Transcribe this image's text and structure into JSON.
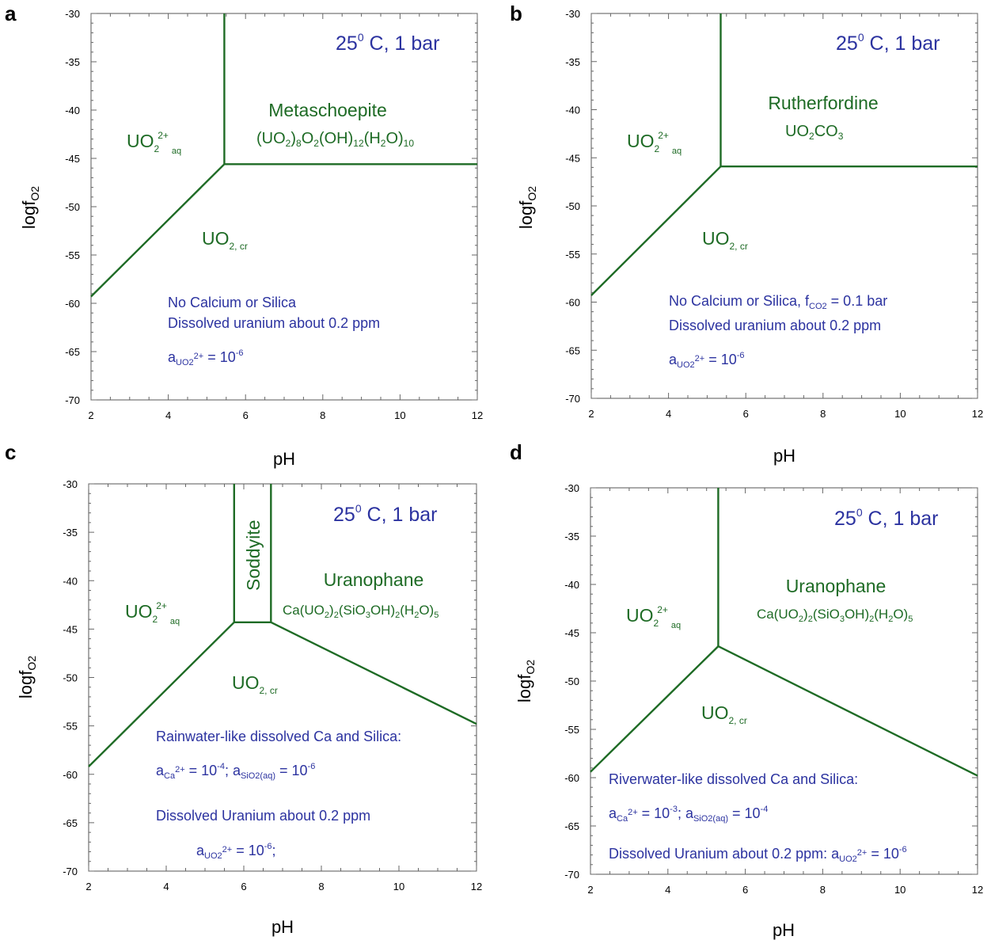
{
  "panel_labels": [
    "a",
    "b",
    "c",
    "d"
  ],
  "common": {
    "temp_text": "25",
    "temp_sup": "0",
    "temp_rest": " C, 1 bar",
    "x_label": "pH",
    "y_label": "logf",
    "y_label_sub": "O2",
    "x_ticks": [
      "2",
      "4",
      "6",
      "8",
      "10",
      "12"
    ],
    "y_ticks": [
      "-30",
      "-35",
      "-40",
      "-45",
      "-50",
      "-55",
      "-60",
      "-65",
      "-70"
    ],
    "uo2aq_main": "UO",
    "uo2aq_sub": "2",
    "uo2aq_sup": "2+",
    "uo2aq_tail": "aq",
    "uo2cr_main": "UO",
    "uo2cr_sub": "2, cr"
  },
  "colors": {
    "boundary": "#1e6b25",
    "mineral_text": "#1e6b25",
    "annotation_text": "#2c33a0",
    "frame": "#555555"
  },
  "panels": {
    "a": {
      "mineral": "Metaschoepite",
      "formula": "(UO2)8O2(OH)12(H2O)10",
      "notes": [
        "No Calcium or Silica",
        "Dissolved uranium about 0.2 ppm"
      ],
      "activity": {
        "a": "a",
        "sub": "UO2",
        "sup": "2+",
        "eq": " = 10",
        "exp": "-6"
      }
    },
    "b": {
      "mineral": "Rutherfordine",
      "formula": "UO2CO3",
      "notes_line1_prefix": "No Calcium or Silica, f",
      "notes_line1_sub": "CO2",
      "notes_line1_suffix": " = 0.1 bar",
      "notes": [
        "Dissolved uranium about 0.2 ppm"
      ],
      "activity": {
        "a": "a",
        "sub": "UO2",
        "sup": "2+",
        "eq": " = 10",
        "exp": "-6"
      }
    },
    "c": {
      "mineral_vertical": "Soddyite",
      "mineral": "Uranophane",
      "formula": "Ca(UO2)2(SiO3OH)2(H2O)5",
      "notes": [
        "Rainwater-like dissolved Ca and Silica:",
        "Dissolved Uranium about 0.2 ppm"
      ],
      "activity_ca": {
        "a": "a",
        "sub": "Ca",
        "sup": "2+",
        "eq": " = 10",
        "exp": "-4",
        "sep": "; a",
        "sub2": "SiO2(aq)",
        "eq2": " = 10",
        "exp2": "-6"
      },
      "activity": {
        "a": "a",
        "sub": "UO2",
        "sup": "2+",
        "eq": " = 10",
        "exp": "-6",
        "tail": ";"
      }
    },
    "d": {
      "mineral": "Uranophane",
      "formula": "Ca(UO2)2(SiO3OH)2(H2O)5",
      "notes": [
        "Riverwater-like dissolved Ca and Silica:"
      ],
      "activity_ca": {
        "a": "a",
        "sub": "Ca",
        "sup": "2+",
        "eq": " = 10",
        "exp": "-3",
        "sep": "; a",
        "sub2": "SiO2(aq)",
        "eq2": " = 10",
        "exp2": "-4"
      },
      "line3_prefix": "Dissolved Uranium about 0.2 ppm: ",
      "activity": {
        "a": "a",
        "sub": "UO2",
        "sup": "2+",
        "eq": " = 10",
        "exp": "-6"
      }
    }
  },
  "chart_data": [
    {
      "type": "line",
      "panel": "a",
      "xlabel": "pH",
      "ylabel": "logfO2",
      "xlim": [
        2,
        12
      ],
      "ylim": [
        -70,
        -30
      ],
      "boundaries": [
        {
          "name": "UO2 2+ aq / UO2,cr",
          "points": [
            [
              2,
              -59.3
            ],
            [
              5.45,
              -45.6
            ]
          ]
        },
        {
          "name": "UO2 2+ aq / Metaschoepite",
          "points": [
            [
              5.45,
              -45.6
            ],
            [
              5.45,
              -30
            ]
          ]
        },
        {
          "name": "Metaschoepite / UO2,cr",
          "points": [
            [
              5.45,
              -45.6
            ],
            [
              12,
              -45.6
            ]
          ]
        }
      ],
      "fields": [
        "UO2 2+ aq",
        "Metaschoepite",
        "UO2,cr"
      ]
    },
    {
      "type": "line",
      "panel": "b",
      "xlabel": "pH",
      "ylabel": "logfO2",
      "xlim": [
        2,
        12
      ],
      "ylim": [
        -70,
        -30
      ],
      "boundaries": [
        {
          "name": "UO2 2+ aq / UO2,cr",
          "points": [
            [
              2,
              -59.3
            ],
            [
              5.35,
              -45.9
            ]
          ]
        },
        {
          "name": "UO2 2+ aq / Rutherfordine",
          "points": [
            [
              5.35,
              -45.9
            ],
            [
              5.35,
              -30
            ]
          ]
        },
        {
          "name": "Rutherfordine / UO2,cr",
          "points": [
            [
              5.35,
              -45.9
            ],
            [
              12,
              -45.9
            ]
          ]
        }
      ],
      "fields": [
        "UO2 2+ aq",
        "Rutherfordine",
        "UO2,cr"
      ]
    },
    {
      "type": "line",
      "panel": "c",
      "xlabel": "pH",
      "ylabel": "logfO2",
      "xlim": [
        2,
        12
      ],
      "ylim": [
        -70,
        -30
      ],
      "boundaries": [
        {
          "name": "UO2 2+ aq / UO2,cr",
          "points": [
            [
              2,
              -59.2
            ],
            [
              5.75,
              -44.3
            ]
          ]
        },
        {
          "name": "UO2 2+ aq / Soddyite",
          "points": [
            [
              5.75,
              -44.3
            ],
            [
              5.75,
              -30
            ]
          ]
        },
        {
          "name": "Soddyite / Uranophane",
          "points": [
            [
              6.7,
              -44.3
            ],
            [
              6.7,
              -30
            ]
          ]
        },
        {
          "name": "Soddyite / UO2,cr",
          "points": [
            [
              5.75,
              -44.3
            ],
            [
              6.7,
              -44.3
            ]
          ]
        },
        {
          "name": "Uranophane / UO2,cr",
          "points": [
            [
              6.7,
              -44.3
            ],
            [
              12,
              -54.8
            ]
          ]
        }
      ],
      "fields": [
        "UO2 2+ aq",
        "Soddyite",
        "Uranophane",
        "UO2,cr"
      ]
    },
    {
      "type": "line",
      "panel": "d",
      "xlabel": "pH",
      "ylabel": "logfO2",
      "xlim": [
        2,
        12
      ],
      "ylim": [
        -70,
        -30
      ],
      "boundaries": [
        {
          "name": "UO2 2+ aq / UO2,cr",
          "points": [
            [
              2,
              -59.4
            ],
            [
              5.3,
              -46.4
            ]
          ]
        },
        {
          "name": "UO2 2+ aq / Uranophane",
          "points": [
            [
              5.3,
              -46.4
            ],
            [
              5.3,
              -30
            ]
          ]
        },
        {
          "name": "Uranophane / UO2,cr",
          "points": [
            [
              5.3,
              -46.4
            ],
            [
              12,
              -59.8
            ]
          ]
        }
      ],
      "fields": [
        "UO2 2+ aq",
        "Uranophane",
        "UO2,cr"
      ]
    }
  ]
}
